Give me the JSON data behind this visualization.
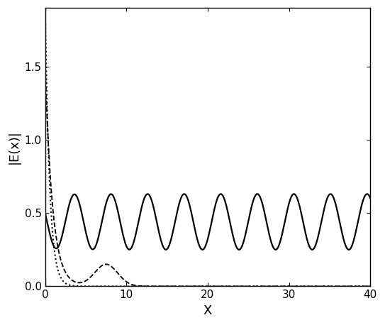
{
  "title": "",
  "xlabel": "X",
  "ylabel": "|E(x)|",
  "xlim": [
    0,
    40
  ],
  "ylim": [
    0,
    1.9
  ],
  "yticks": [
    0,
    0.5,
    1.0,
    1.5
  ],
  "xticks": [
    0,
    10,
    20,
    30,
    40
  ],
  "background_color": "#ffffff",
  "solid_line": {
    "color": "black",
    "linestyle": "-",
    "linewidth": 1.6
  },
  "dashed_line": {
    "color": "black",
    "linestyle": "--",
    "linewidth": 1.3
  },
  "dotted_line": {
    "color": "black",
    "linestyle": ":",
    "linewidth": 1.5
  },
  "figsize": [
    5.43,
    4.58
  ],
  "dpi": 100
}
